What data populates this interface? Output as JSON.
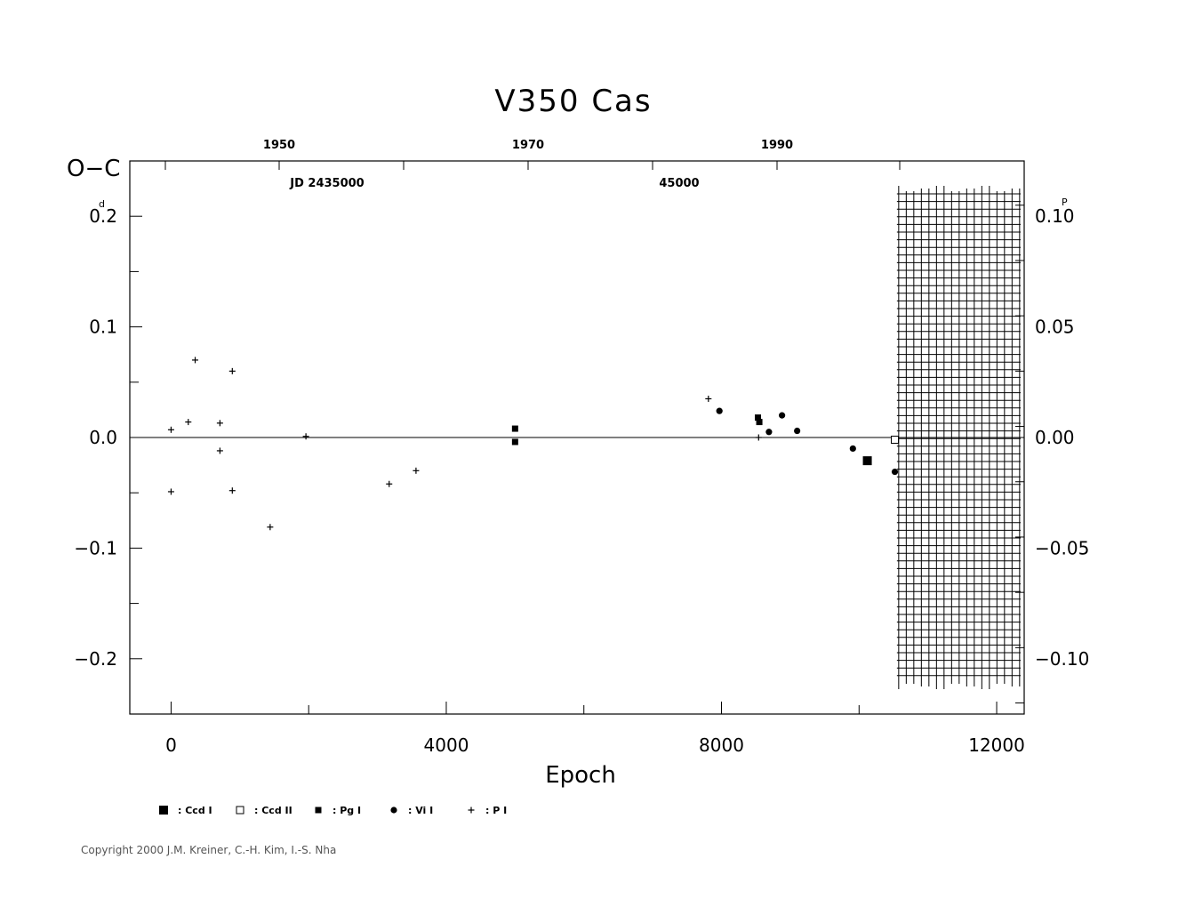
{
  "chart_data": {
    "type": "scatter",
    "title": "V350  Cas",
    "xlabel": "Epoch",
    "ylabel": "O−C",
    "left_unit_sup": "d",
    "right_unit_sup": "P",
    "xlim": [
      -600,
      12400
    ],
    "ylim": [
      -0.25,
      0.25
    ],
    "x_ticks": [
      0,
      4000,
      8000,
      12000
    ],
    "x_tick_labels": [
      "0",
      "4000",
      "8000",
      "12000"
    ],
    "y_ticks": [
      0.2,
      0.1,
      0.0,
      -0.1,
      -0.2
    ],
    "y_tick_labels": [
      "0.2",
      "0.1",
      "0.0",
      "−0.1",
      "−0.2"
    ],
    "right_ticks_phase": [
      0.1,
      0.05,
      0.0,
      -0.05,
      -0.1
    ],
    "right_tick_labels": [
      "0.10",
      "0.05",
      "0.00",
      "−0.05",
      "−0.10"
    ],
    "period_days": 2.0,
    "top_year_ticks": [
      1950,
      1970,
      1990
    ],
    "top_year_labels": [
      "1950",
      "1970",
      "1990"
    ],
    "top_jd_labels": [
      "JD  2435000",
      "45000"
    ],
    "zero_line": true,
    "shaded_region_epoch": [
      10550,
      12400
    ],
    "series": [
      {
        "name": "Ccd I",
        "marker": "filled-square-large",
        "x": [
          10120
        ],
        "y": [
          -0.021
        ]
      },
      {
        "name": "Ccd II",
        "marker": "open-square",
        "x": [
          10520
        ],
        "y": [
          -0.002
        ]
      },
      {
        "name": "Pg I",
        "marker": "filled-square",
        "x": [
          5000,
          5000,
          8530,
          8550
        ],
        "y": [
          0.008,
          -0.004,
          0.018,
          0.014
        ]
      },
      {
        "name": "Vi I",
        "marker": "filled-circle",
        "x": [
          7970,
          8690,
          8880,
          9100,
          9910,
          10520
        ],
        "y": [
          0.024,
          0.005,
          0.02,
          0.006,
          -0.01,
          -0.031
        ]
      },
      {
        "name": "P I",
        "marker": "plus",
        "x": [
          0,
          0,
          250,
          350,
          710,
          710,
          890,
          890,
          1440,
          1960,
          3170,
          3560,
          7810,
          8540
        ],
        "y": [
          0.007,
          -0.049,
          0.014,
          0.07,
          0.013,
          -0.012,
          0.06,
          -0.048,
          -0.081,
          0.001,
          -0.042,
          -0.03,
          0.035,
          0.0
        ]
      }
    ],
    "legend": {
      "placement": "bottom-left",
      "entries": [
        ": Ccd  I",
        ": Ccd  II",
        ": Pg  I",
        ": Vi  I",
        ": P  I"
      ]
    }
  },
  "copyright": "Copyright 2000 J.M. Kreiner, C.-H. Kim, I.-S. Nha"
}
